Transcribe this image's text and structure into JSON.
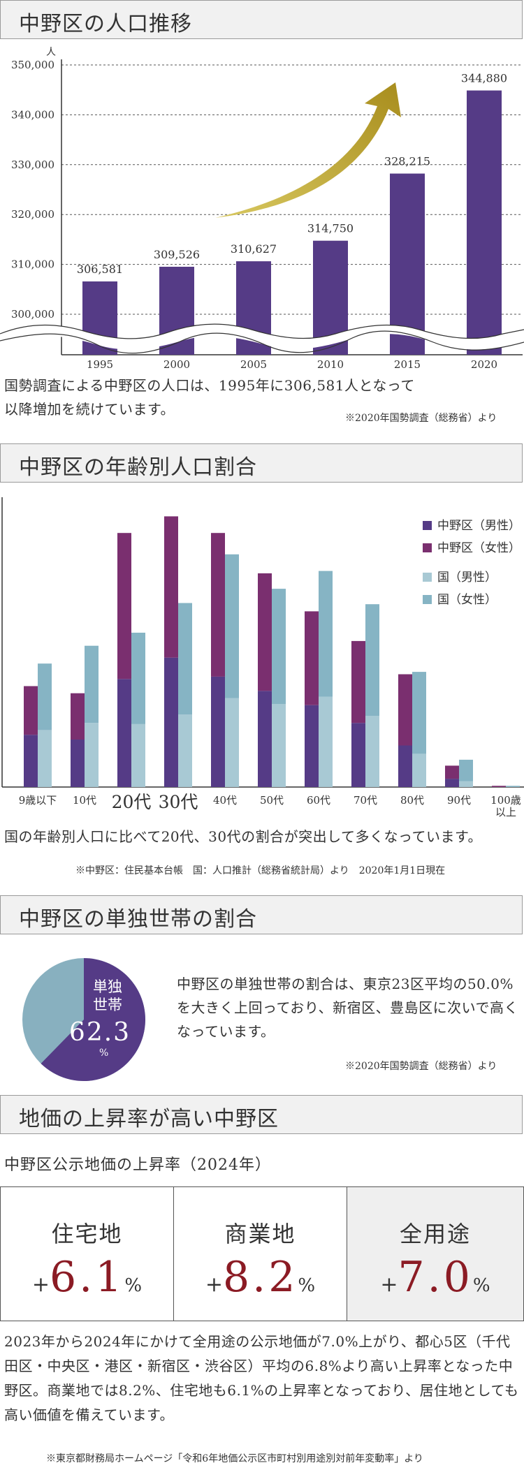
{
  "sections": {
    "population": {
      "title": "中野区の人口推移",
      "unit": "人",
      "paragraph": "国勢調査による中野区の人口は、1995年に306,581人となって以降増加を続けています。",
      "note": "※2020年国勢調査（総務省）より"
    },
    "age": {
      "title": "中野区の年齢別人口割合",
      "paragraph": "国の年齢別人口に比べて20代、30代の割合が突出して多くなっています。",
      "note": "※中野区：住民基本台帳　国：人口推計（総務省統計局）より　2020年1月1日現在"
    },
    "single": {
      "title": "中野区の単独世帯の割合",
      "pie_label_1": "単独",
      "pie_label_2": "世帯",
      "pie_value": "62.3",
      "pie_unit": "%",
      "paragraph": "中野区の単独世帯の割合は、東京23区平均の50.0%を大きく上回っており、新宿区、豊島区に次いで高くなっています。",
      "note": "※2020年国勢調査（総務省）より"
    },
    "landprice": {
      "title": "地価の上昇率が高い中野区",
      "subtitle": "中野区公示地価の上昇率（2024年）",
      "boxes": [
        {
          "label": "住宅地",
          "plus": "+",
          "value": "6.1",
          "unit": "%",
          "highlight": false
        },
        {
          "label": "商業地",
          "plus": "+",
          "value": "8.2",
          "unit": "%",
          "highlight": false
        },
        {
          "label": "全用途",
          "plus": "+",
          "value": "7.0",
          "unit": "%",
          "highlight": true
        }
      ],
      "paragraph": "2023年から2024年にかけて全用途の公示地価が7.0%上がり、都心5区（千代田区・中央区・港区・新宿区・渋谷区）平均の6.8%より高い上昇率となった中野区。商業地では8.2%、住宅地も6.1%の上昇率となっており、居住地としても高い価値を備えています。",
      "note": "※東京都財務局ホームページ「令和6年地価公示区市町村別用途別対前年変動率」より"
    }
  },
  "colors": {
    "purple": "#553b86",
    "magenta": "#7a2f6f",
    "light_blue": "#a8c9d4",
    "mid_blue": "#86b4c4",
    "pie_blue": "#88b0bf",
    "gold": "#a88d1d",
    "red": "#8b1b24"
  },
  "chart_data": [
    {
      "type": "bar",
      "categories": [
        "1995",
        "2000",
        "2005",
        "2010",
        "2015",
        "2020"
      ],
      "values": [
        306581,
        309526,
        310627,
        314750,
        328215,
        344880
      ],
      "data_labels": [
        "306,581",
        "309,526",
        "310,627",
        "314,750",
        "328,215",
        "344,880"
      ],
      "yticks": [
        "300,000",
        "310,000",
        "320,000",
        "330,000",
        "340,000",
        "350,000"
      ],
      "ylabel": "人",
      "ylim": [
        300000,
        350000
      ],
      "axis_break": true,
      "grid": "dashed horizontal"
    },
    {
      "type": "bar",
      "stacked": true,
      "categories": [
        "9歳以下",
        "10代",
        "20代",
        "30代",
        "40代",
        "50代",
        "60代",
        "70代",
        "80代",
        "90代",
        "100歳以上"
      ],
      "category_label_lines": [
        [
          "9歳以下"
        ],
        [
          "10代"
        ],
        [
          "20代"
        ],
        [
          "30代"
        ],
        [
          "40代"
        ],
        [
          "50代"
        ],
        [
          "60代"
        ],
        [
          "70代"
        ],
        [
          "80代"
        ],
        [
          "90代"
        ],
        [
          "100歳",
          "以上"
        ]
      ],
      "emphasized_categories": [
        "20代",
        "30代"
      ],
      "series": [
        {
          "name": "中野区（男性）",
          "group": "中野区",
          "values": [
            4.4,
            4.0,
            9.1,
            10.9,
            9.3,
            8.1,
            6.9,
            5.4,
            3.5,
            0.7,
            0.0
          ]
        },
        {
          "name": "中野区（女性）",
          "group": "中野区",
          "values": [
            4.1,
            3.9,
            12.3,
            11.9,
            12.1,
            9.9,
            7.9,
            6.9,
            6.0,
            1.1,
            0.1
          ]
        },
        {
          "name": "国（男性）",
          "group": "国",
          "values": [
            4.8,
            5.4,
            5.3,
            6.1,
            7.5,
            7.0,
            7.6,
            6.0,
            2.8,
            0.5,
            0.0
          ]
        },
        {
          "name": "国（女性）",
          "group": "国",
          "values": [
            5.6,
            6.5,
            7.7,
            9.4,
            12.1,
            9.7,
            10.6,
            9.4,
            6.9,
            1.8,
            0.1
          ]
        }
      ],
      "ylim": [
        0,
        25
      ],
      "legend": "top-right"
    },
    {
      "type": "pie",
      "labels": [
        "単独世帯",
        ""
      ],
      "values": [
        62.3,
        37.7
      ]
    }
  ]
}
